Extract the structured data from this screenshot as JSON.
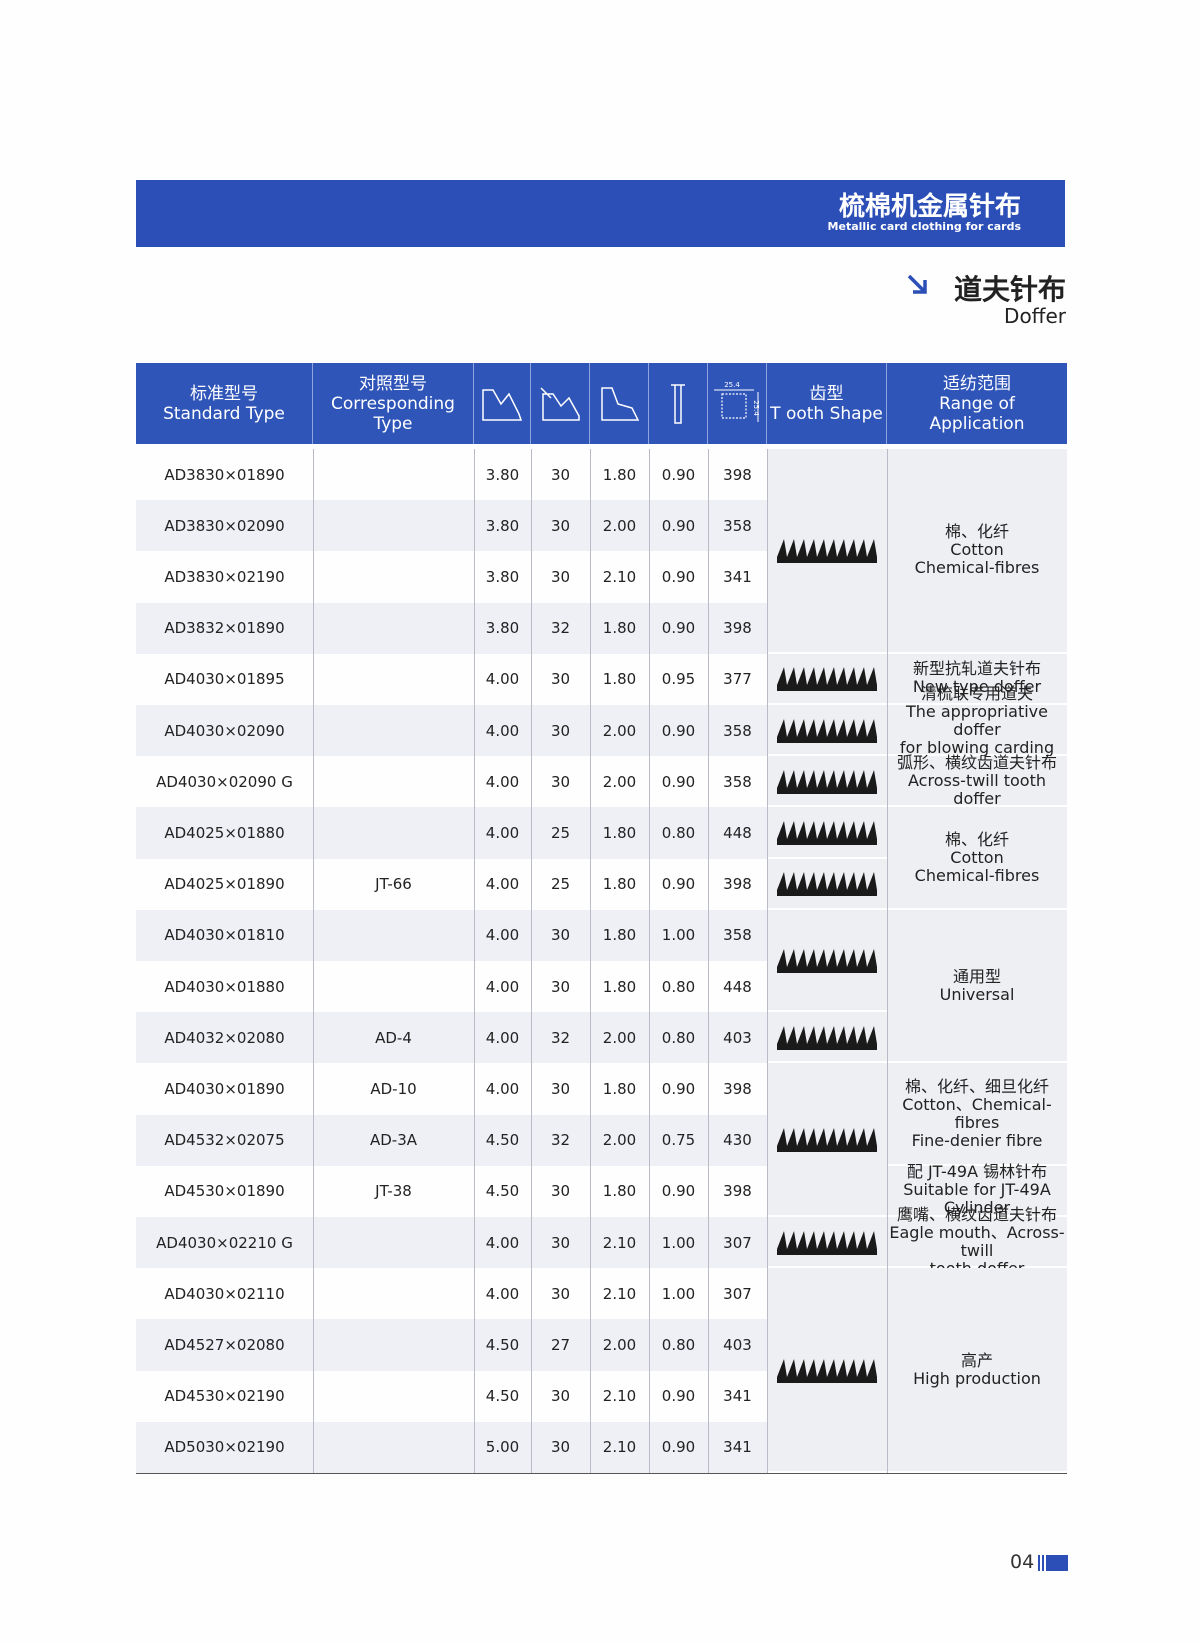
{
  "header": {
    "title_cn": "梳棉机金属针布",
    "title_en": "Metallic card clothing for cards"
  },
  "section": {
    "title_cn": "道夫针布",
    "title_en": "Doffer"
  },
  "table": {
    "columns": {
      "standard": [
        "标准型号",
        "Standard Type"
      ],
      "corresponding": [
        "对照型号",
        "Corresponding",
        "Type"
      ],
      "density_label": "25.4",
      "tooth": [
        "齿型",
        "T ooth Shape"
      ],
      "application": [
        "适纺范围",
        "Range of",
        "Application"
      ]
    },
    "groups": [
      {
        "application": [
          "棉、化纤",
          "Cotton",
          "Chemical-fibres"
        ],
        "rows": [
          [
            "AD3830×01890",
            null,
            "3.80",
            "30",
            "1.80",
            "0.90",
            "398"
          ],
          [
            "AD3830×02090",
            null,
            "3.80",
            "30",
            "2.00",
            "0.90",
            "358"
          ],
          [
            "AD3830×02190",
            null,
            "3.80",
            "30",
            "2.10",
            "0.90",
            "341"
          ],
          [
            "AD3832×01890",
            null,
            "3.80",
            "32",
            "1.80",
            "0.90",
            "398"
          ]
        ]
      },
      {
        "application": [
          "新型抗轧道夫针布",
          "New type doffer"
        ],
        "rows": [
          [
            "AD4030×01895",
            null,
            "4.00",
            "30",
            "1.80",
            "0.95",
            "377"
          ]
        ]
      },
      {
        "application": [
          "清梳联专用道夫",
          "The appropriative doffer",
          "for blowing carding unit"
        ],
        "rows": [
          [
            "AD4030×02090",
            null,
            "4.00",
            "30",
            "2.00",
            "0.90",
            "358"
          ]
        ]
      },
      {
        "application": [
          "弧形、横纹齿道夫针布",
          "Across-twill tooth doffer"
        ],
        "rows": [
          [
            "AD4030×02090 G",
            null,
            "4.00",
            "30",
            "2.00",
            "0.90",
            "358"
          ]
        ]
      },
      {
        "application": [
          "棉、化纤",
          "Cotton",
          "Chemical-fibres"
        ],
        "rows": [
          [
            "AD4025×01880",
            null,
            "4.00",
            "25",
            "1.80",
            "0.80",
            "448"
          ],
          [
            "AD4025×01890",
            "JT-66",
            "4.00",
            "25",
            "1.80",
            "0.90",
            "398"
          ]
        ]
      },
      {
        "application": [
          "通用型",
          "Universal"
        ],
        "rows": [
          [
            "AD4030×01810",
            null,
            "4.00",
            "30",
            "1.80",
            "1.00",
            "358"
          ],
          [
            "AD4030×01880",
            null,
            "4.00",
            "30",
            "1.80",
            "0.80",
            "448"
          ],
          [
            "AD4032×02080",
            "AD-4",
            "4.00",
            "32",
            "2.00",
            "0.80",
            "403"
          ]
        ]
      },
      {
        "application": [
          "棉、化纤、细旦化纤",
          "Cotton、Chemical-fibres",
          "Fine-denier fibre"
        ],
        "rows": [
          [
            "AD4030×01890",
            "AD-10",
            "4.00",
            "30",
            "1.80",
            "0.90",
            "398"
          ],
          [
            "AD4532×02075",
            "AD-3A",
            "4.50",
            "32",
            "2.00",
            "0.75",
            "430"
          ]
        ]
      },
      {
        "application": [
          "配 JT-49A 锡林针布",
          "Suitable for JT-49A",
          "Cylinder"
        ],
        "rows": [
          [
            "AD4530×01890",
            "JT-38",
            "4.50",
            "30",
            "1.80",
            "0.90",
            "398"
          ]
        ]
      },
      {
        "application": [
          "鹰嘴、横纹齿道夫针布",
          "Eagle mouth、Across-twill",
          "tooth doffer"
        ],
        "rows": [
          [
            "AD4030×02210 G",
            null,
            "4.00",
            "30",
            "2.10",
            "1.00",
            "307"
          ]
        ]
      },
      {
        "application": [
          "高产",
          "High production"
        ],
        "rows": [
          [
            "AD4030×02110",
            null,
            "4.00",
            "30",
            "2.10",
            "1.00",
            "307"
          ],
          [
            "AD4527×02080",
            null,
            "4.50",
            "27",
            "2.00",
            "0.80",
            "403"
          ],
          [
            "AD4530×02190",
            null,
            "4.50",
            "30",
            "2.10",
            "0.90",
            "341"
          ],
          [
            "AD5030×02190",
            null,
            "5.00",
            "30",
            "2.10",
            "0.90",
            "341"
          ]
        ]
      }
    ]
  },
  "page_number": "04"
}
